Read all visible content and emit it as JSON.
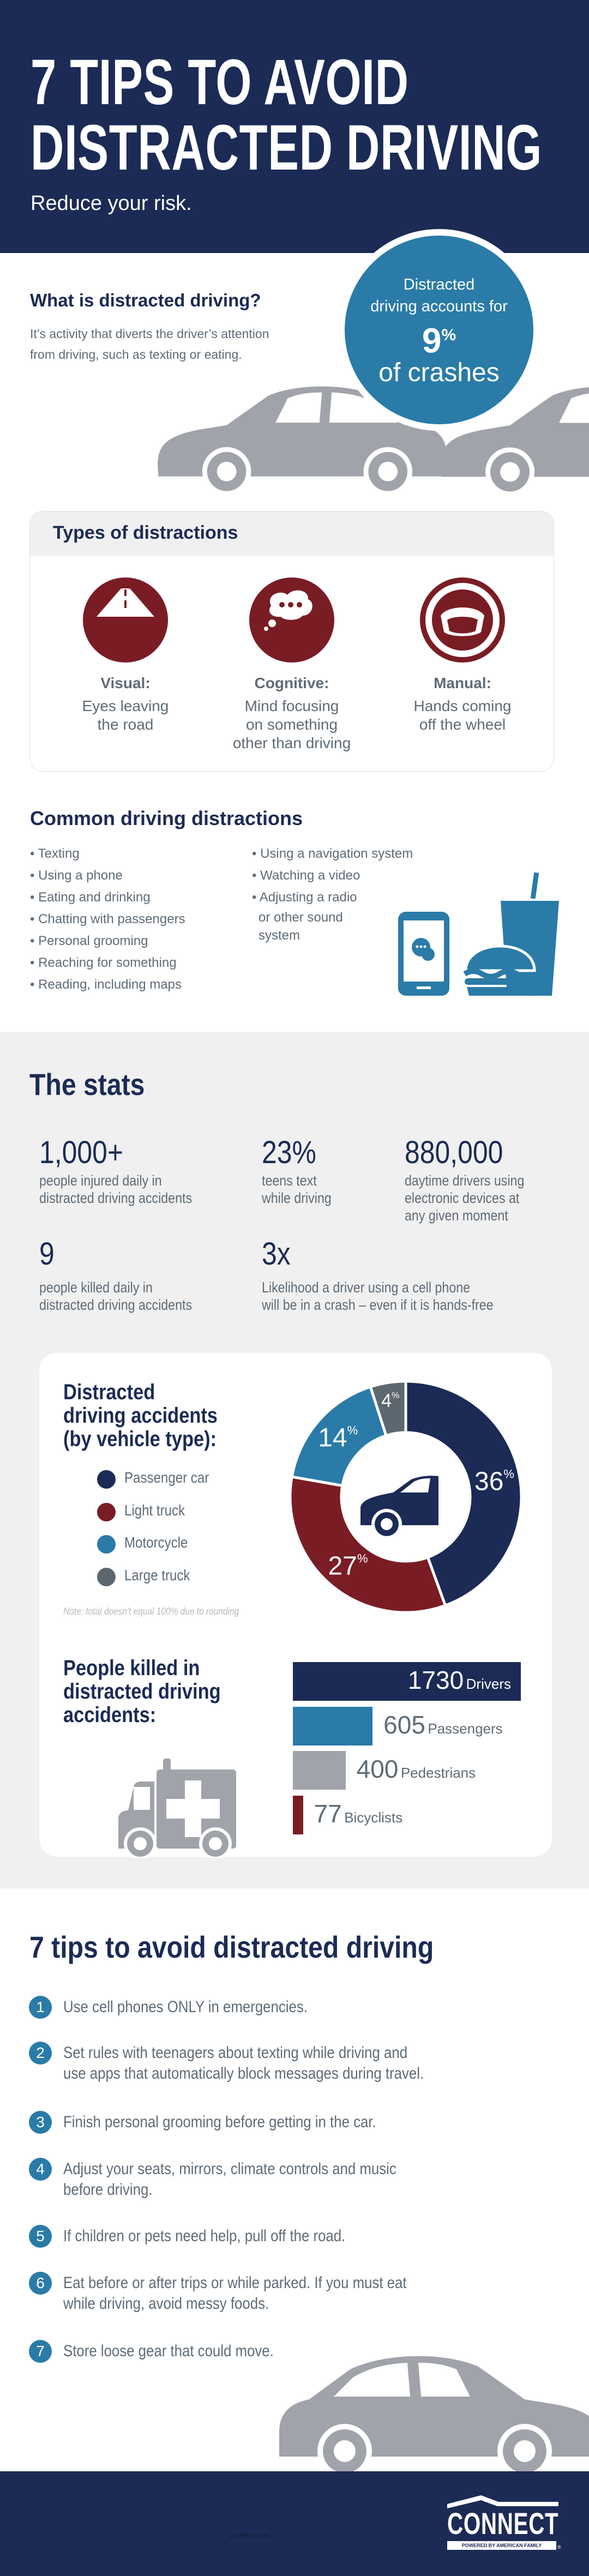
{
  "colors": {
    "navy": "#1b2b55",
    "blue": "#2a7ba8",
    "maroon": "#7a1c24",
    "gray": "#a0a3a9",
    "dark_gray": "#5c6770"
  },
  "hero": {
    "title_line1": "7 TIPS TO AVOID",
    "title_line2": "DISTRACTED DRIVING",
    "subtitle": "Reduce your risk."
  },
  "intro": {
    "heading": "What is distracted driving?",
    "body_line1": "It’s activity that diverts the driver’s attention",
    "body_line2": "from driving, such as texting or eating.",
    "bubble": {
      "line1": "Distracted",
      "line2": "driving accounts for",
      "number": "9",
      "unit": "%",
      "line3": "of crashes"
    }
  },
  "types": {
    "heading": "Types of distractions",
    "items": [
      {
        "icon": "road-icon",
        "label": "Visual:",
        "desc": [
          "Eyes leaving",
          "the road"
        ]
      },
      {
        "icon": "thought-bubble-icon",
        "label": "Cognitive:",
        "desc": [
          "Mind focusing",
          "on something",
          "other than driving"
        ]
      },
      {
        "icon": "steering-wheel-icon",
        "label": "Manual:",
        "desc": [
          "Hands coming",
          "off the wheel"
        ]
      }
    ]
  },
  "common": {
    "heading": "Common driving distractions",
    "left": [
      "Texting",
      "Using a phone",
      "Eating and drinking",
      "Chatting with passengers",
      "Personal grooming",
      "Reaching for something",
      "Reading, including maps"
    ],
    "right": [
      "Using a navigation system",
      "Watching a video",
      "Adjusting a radio",
      "or other sound",
      "system"
    ]
  },
  "stats": {
    "heading": "The stats",
    "items": [
      {
        "number": "1,000+",
        "desc": [
          "people injured daily in",
          "distracted driving accidents"
        ]
      },
      {
        "number": "23%",
        "desc": [
          "teens text",
          "while driving"
        ]
      },
      {
        "number": "880,000",
        "desc": [
          "daytime drivers using",
          "electronic devices at",
          "any given moment"
        ]
      },
      {
        "number": "9",
        "desc": [
          "people killed daily in",
          "distracted driving accidents"
        ]
      },
      {
        "number": "3x",
        "desc": [
          "Likelihood a driver using a cell phone",
          "will be in a crash – even if it is hands-free"
        ]
      }
    ]
  },
  "chart_data": [
    {
      "type": "pie",
      "title": "Distracted driving accidents (by vehicle type):",
      "title_lines": [
        "Distracted",
        "driving accidents",
        "(by vehicle type):"
      ],
      "categories": [
        "Passenger car",
        "Light truck",
        "Motorcycle",
        "Large truck"
      ],
      "values": [
        36,
        27,
        14,
        4
      ],
      "unit": "%",
      "colors": [
        "#1b2b55",
        "#7a1c24",
        "#2a7ba8",
        "#5c6770"
      ],
      "legend": "left",
      "donut": true,
      "note": "Note: total doesn't equal 100% due to rounding"
    },
    {
      "type": "bar",
      "orientation": "horizontal",
      "title": "People killed in distracted driving accidents:",
      "title_lines": [
        "People killed in",
        "distracted driving",
        "accidents:"
      ],
      "categories": [
        "Drivers",
        "Passengers",
        "Pedestrians",
        "Bicyclists"
      ],
      "values": [
        1730,
        605,
        400,
        77
      ],
      "colors": [
        "#1b2b55",
        "#2a7ba8",
        "#a0a3a9",
        "#7a1c24"
      ]
    }
  ],
  "tips": {
    "heading": "7 tips to avoid distracted driving",
    "items": [
      {
        "n": "1",
        "lines": [
          "Use cell phones ONLY in emergencies."
        ]
      },
      {
        "n": "2",
        "lines": [
          "Set rules with teenagers about texting while driving and",
          "use apps that automatically block messages during travel."
        ]
      },
      {
        "n": "3",
        "lines": [
          "Finish personal grooming before getting in the car."
        ]
      },
      {
        "n": "4",
        "lines": [
          "Adjust your seats, mirrors, climate controls and music",
          "before driving."
        ]
      },
      {
        "n": "5",
        "lines": [
          "If children or pets need help, pull off the road."
        ]
      },
      {
        "n": "6",
        "lines": [
          "Eat before or after trips or while parked. If you must eat",
          "while driving, avoid messy foods."
        ]
      },
      {
        "n": "7",
        "lines": [
          "Store loose gear that could move."
        ]
      }
    ]
  },
  "footer": {
    "placeholder_text": "Lorem ipsum",
    "logo": {
      "name": "CONNECT",
      "tagline": "POWERED BY AMERICAN FAMILY INSURANCE",
      "mark": "®"
    }
  }
}
